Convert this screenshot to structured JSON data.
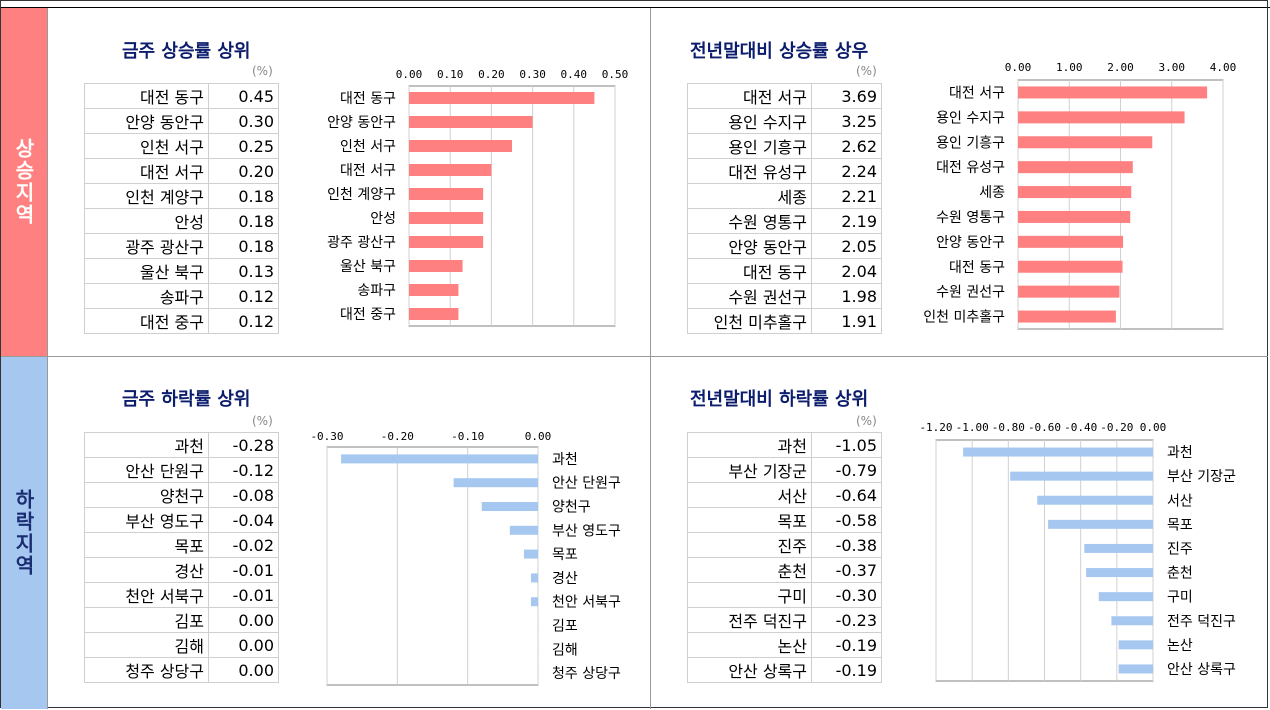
{
  "sections": {
    "rise_label": "상승지역",
    "fall_label": "하락지역"
  },
  "unit": "(%)",
  "colors": {
    "rise_bar": "#ff8080",
    "fall_bar": "#a6c8f0",
    "title": "#0d1d6e"
  },
  "chart_data": [
    {
      "id": "weekly-rise",
      "type": "bar",
      "orientation": "horizontal",
      "title": "금주 상승률 상위",
      "categories": [
        "대전 동구",
        "안양 동안구",
        "인천 서구",
        "대전 서구",
        "인천 계양구",
        "안성",
        "광주 광산구",
        "울산 북구",
        "송파구",
        "대전 중구"
      ],
      "values": [
        0.45,
        0.3,
        0.25,
        0.2,
        0.18,
        0.18,
        0.18,
        0.13,
        0.12,
        0.12
      ],
      "value_labels": [
        "0.45",
        "0.30",
        "0.25",
        "0.20",
        "0.18",
        "0.18",
        "0.18",
        "0.13",
        "0.12",
        "0.12"
      ],
      "xlim": [
        0,
        0.5
      ],
      "ticks": [
        0,
        0.1,
        0.2,
        0.3,
        0.4,
        0.5
      ],
      "tick_labels": [
        "0.00",
        "0.10",
        "0.20",
        "0.30",
        "0.40",
        "0.50"
      ],
      "axis_position": "top",
      "grid": true
    },
    {
      "id": "ytd-rise",
      "type": "bar",
      "orientation": "horizontal",
      "title": "전년말대비 상승률 상우",
      "categories": [
        "대전 서구",
        "용인 수지구",
        "용인 기흥구",
        "대전 유성구",
        "세종",
        "수원 영통구",
        "안양 동안구",
        "대전 동구",
        "수원 권선구",
        "인천 미추홀구"
      ],
      "values": [
        3.69,
        3.25,
        2.62,
        2.24,
        2.21,
        2.19,
        2.05,
        2.04,
        1.98,
        1.91
      ],
      "value_labels": [
        "3.69",
        "3.25",
        "2.62",
        "2.24",
        "2.21",
        "2.19",
        "2.05",
        "2.04",
        "1.98",
        "1.91"
      ],
      "xlim": [
        0,
        4
      ],
      "ticks": [
        0,
        1,
        2,
        3,
        4
      ],
      "tick_labels": [
        "0.00",
        "1.00",
        "2.00",
        "3.00",
        "4.00"
      ],
      "axis_position": "top",
      "grid": true
    },
    {
      "id": "weekly-fall",
      "type": "bar",
      "orientation": "horizontal",
      "title": "금주 하락률 상위",
      "categories": [
        "과천",
        "안산 단원구",
        "양천구",
        "부산 영도구",
        "목포",
        "경산",
        "천안 서북구",
        "김포",
        "김해",
        "청주 상당구"
      ],
      "values": [
        -0.28,
        -0.12,
        -0.08,
        -0.04,
        -0.02,
        -0.01,
        -0.01,
        0.0,
        0.0,
        0.0
      ],
      "value_labels": [
        "-0.28",
        "-0.12",
        "-0.08",
        "-0.04",
        "-0.02",
        "-0.01",
        "-0.01",
        "0.00",
        "0.00",
        "0.00"
      ],
      "xlim": [
        -0.3,
        0
      ],
      "ticks": [
        -0.3,
        -0.2,
        -0.1,
        0
      ],
      "tick_labels": [
        "-0.30",
        "-0.20",
        "-0.10",
        "0.00"
      ],
      "axis_position": "top",
      "grid": true
    },
    {
      "id": "ytd-fall",
      "type": "bar",
      "orientation": "horizontal",
      "title": "전년말대비 하락률 상위",
      "categories": [
        "과천",
        "부산 기장군",
        "서산",
        "목포",
        "진주",
        "춘천",
        "구미",
        "전주 덕진구",
        "논산",
        "안산 상록구"
      ],
      "values": [
        -1.05,
        -0.79,
        -0.64,
        -0.58,
        -0.38,
        -0.37,
        -0.3,
        -0.23,
        -0.19,
        -0.19
      ],
      "value_labels": [
        "-1.05",
        "-0.79",
        "-0.64",
        "-0.58",
        "-0.38",
        "-0.37",
        "-0.30",
        "-0.23",
        "-0.19",
        "-0.19"
      ],
      "xlim": [
        -1.2,
        0
      ],
      "ticks": [
        -1.2,
        -1.0,
        -0.8,
        -0.6,
        -0.4,
        -0.2,
        0
      ],
      "tick_labels": [
        "-1.20",
        "-1.00",
        "-0.80",
        "-0.60",
        "-0.40",
        "-0.20",
        "0.00"
      ],
      "axis_position": "top",
      "grid": true
    }
  ]
}
